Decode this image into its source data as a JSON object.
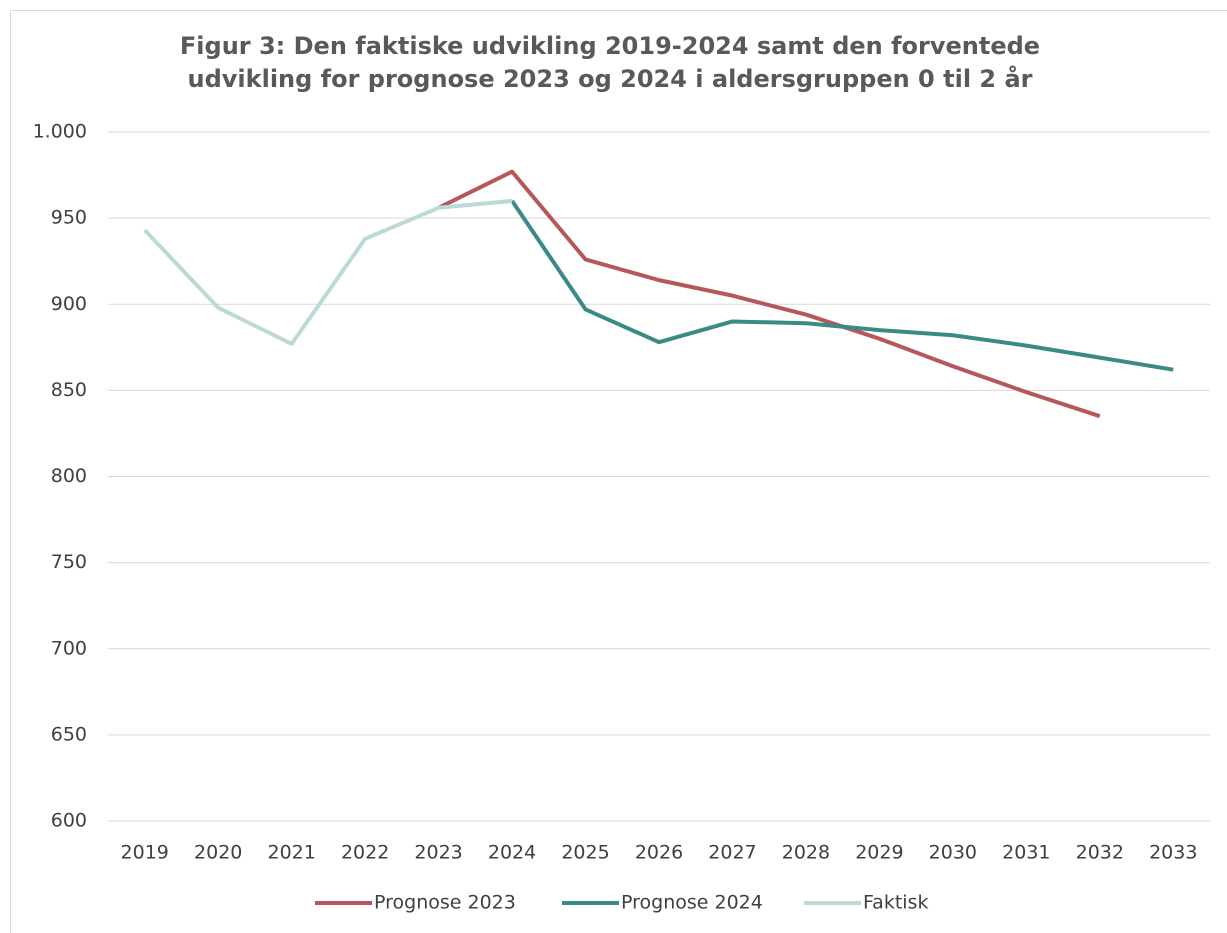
{
  "chart_data": {
    "type": "line",
    "title": "Figur 3: Den faktiske udvikling 2019-2024 samt den forventede udvikling for prognose 2023 og 2024 i aldersgruppen 0 til 2 år",
    "x": [
      "2019",
      "2020",
      "2021",
      "2022",
      "2023",
      "2024",
      "2025",
      "2026",
      "2027",
      "2028",
      "2029",
      "2030",
      "2031",
      "2032",
      "2033"
    ],
    "series": [
      {
        "name": "Prognose 2023",
        "color": "#b5575b",
        "values": [
          null,
          null,
          null,
          null,
          956,
          977,
          926,
          914,
          905,
          894,
          880,
          864,
          849,
          835,
          null
        ]
      },
      {
        "name": "Prognose 2024",
        "color": "#3a8a85",
        "values": [
          null,
          null,
          null,
          null,
          null,
          960,
          897,
          878,
          890,
          889,
          885,
          882,
          876,
          869,
          862
        ]
      },
      {
        "name": "Faktisk",
        "color": "#bcd9d7",
        "values": [
          943,
          898,
          877,
          938,
          956,
          960,
          null,
          null,
          null,
          null,
          null,
          null,
          null,
          null,
          null
        ]
      }
    ],
    "ylim": [
      600,
      1000
    ],
    "yticks": [
      600,
      650,
      700,
      750,
      800,
      850,
      900,
      950,
      {
        "value": 1000,
        "label": "1.000"
      }
    ],
    "grid": true,
    "legend": "bottom"
  }
}
